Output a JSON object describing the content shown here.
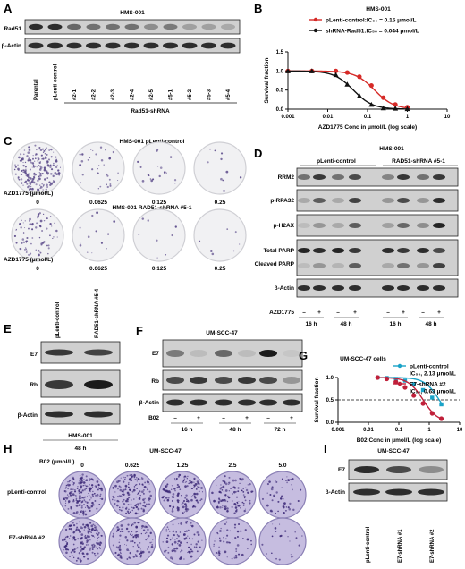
{
  "panels": {
    "A": {
      "letter": "A",
      "title": "HMS-001",
      "rows": [
        "Rad51",
        "β-Actin"
      ],
      "lanes": [
        "Parental",
        "pLenti-control",
        "#2-1",
        "#2-2",
        "#2-3",
        "#2-4",
        "#2-5",
        "#5-1",
        "#5-2",
        "#5-3",
        "#5-4"
      ],
      "group_label": "Rad51-shRNA",
      "rad51_intensity": [
        0.85,
        0.85,
        0.55,
        0.5,
        0.5,
        0.5,
        0.35,
        0.45,
        0.25,
        0.25,
        0.2
      ]
    },
    "B": {
      "letter": "B"
    },
    "C": {
      "letter": "C",
      "title1": "HMS-001 pLenti-control",
      "title2": "HMS-001 RAD51-shRNA #5-1",
      "row_label": "AZD1775 (μmol/L)",
      "doses": [
        "0",
        "0.0625",
        "0.125",
        "0.25"
      ],
      "density_top": [
        0.9,
        0.15,
        0.08,
        0.05
      ],
      "density_bottom": [
        0.35,
        0.06,
        0.04,
        0.03
      ]
    },
    "D": {
      "letter": "D",
      "title": "HMS-001",
      "groups": [
        "pLenti-control",
        "RAD51-shRNA #5-1"
      ],
      "rows": [
        "RRM2",
        "p-RPA32",
        "p-H2AX",
        "Total PARP",
        "Cleaved PARP",
        "β-Actin"
      ],
      "treatment_label": "AZD1775",
      "signs": [
        "–",
        "+",
        "–",
        "+",
        "–",
        "+",
        "–",
        "+"
      ],
      "times": [
        "16 h",
        "48 h",
        "16 h",
        "48 h"
      ]
    },
    "E": {
      "letter": "E",
      "lanes": [
        "pLenti-control",
        "RAD51-shRNA #5-4"
      ],
      "rows": [
        "E7",
        "Rb",
        "β-Actin"
      ],
      "cell_line": "HMS-001",
      "time": "48 h"
    },
    "F": {
      "letter": "F",
      "title": "UM-SCC-47",
      "rows": [
        "E7",
        "Rb",
        "β-Actin"
      ],
      "treatment_label": "B02",
      "signs": [
        "–",
        "+",
        "–",
        "+",
        "–",
        "+"
      ],
      "times": [
        "16 h",
        "48 h",
        "72 h"
      ]
    },
    "G": {
      "letter": "G"
    },
    "H": {
      "letter": "H",
      "title": "UM-SCC-47",
      "dose_label": "B02 (μmol/L)",
      "doses": [
        "0",
        "0.625",
        "1.25",
        "2.5",
        "5.0"
      ],
      "row_labels": [
        "pLenti-control",
        "E7-shRNA #2"
      ],
      "density_top": [
        0.85,
        0.7,
        0.6,
        0.45,
        0.2
      ],
      "density_bottom": [
        0.75,
        0.5,
        0.4,
        0.25,
        0.1
      ]
    },
    "I": {
      "letter": "I",
      "title": "UM-SCC-47",
      "rows": [
        "E7",
        "β-Actin"
      ],
      "lanes": [
        "pLenti-control",
        "E7-shRNA #1",
        "E7-shRNA #2"
      ]
    }
  },
  "chart_data": [
    {
      "type": "line",
      "panel": "B",
      "title": "HMS-001",
      "xlabel": "AZD1775 Conc in μmol/L (log scale)",
      "ylabel": "Survival fraction",
      "xscale": "log",
      "xlim": [
        0.001,
        10
      ],
      "ylim": [
        0,
        1.5
      ],
      "xticks": [
        "0.001",
        "0.01",
        "0.1",
        "1",
        "10"
      ],
      "yticks": [
        "0.0",
        "0.5",
        "1.0",
        "1.5"
      ],
      "legend_position": "top",
      "series": [
        {
          "name": "pLenti-control:IC₅₀ = 0.15 μmol/L",
          "color": "#d62a27",
          "marker": "circle",
          "ic50": 0.15,
          "hill": 1.8,
          "x": [
            0.001,
            0.004,
            0.016,
            0.031,
            0.0625,
            0.125,
            0.25,
            0.5,
            1
          ],
          "y": [
            1.0,
            1.0,
            1.0,
            0.96,
            0.85,
            0.62,
            0.3,
            0.12,
            0.05
          ]
        },
        {
          "name": "shRNA-Rad51:IC₅₀ = 0.044 μmol/L",
          "color": "#111111",
          "marker": "triangle",
          "ic50": 0.044,
          "hill": 1.8,
          "x": [
            0.001,
            0.004,
            0.016,
            0.031,
            0.0625,
            0.125,
            0.25,
            0.5,
            1
          ],
          "y": [
            1.0,
            1.0,
            0.9,
            0.65,
            0.35,
            0.12,
            0.03,
            0.02,
            0.01
          ]
        }
      ]
    },
    {
      "type": "line",
      "panel": "G",
      "title": "UM-SCC-47 cells",
      "xlabel": "B02 Conc in μmol/L (log scale)",
      "ylabel": "Survival fraction",
      "xscale": "log",
      "xlim": [
        0.001,
        10
      ],
      "ylim": [
        0,
        1.0
      ],
      "xticks": [
        "0.001",
        "0.01",
        "0.1",
        "1",
        "10"
      ],
      "yticks": [
        "0.0",
        "0.5",
        "1.0"
      ],
      "reference_line": 0.5,
      "legend_position": "top-right",
      "series": [
        {
          "name": "pLenti-control",
          "ic50_label": "IC₅₀, 2.13 μmol/L",
          "color": "#1aa3c8",
          "marker": "square",
          "ic50": 2.13,
          "hill": 1.8,
          "x": [
            0.02,
            0.04,
            0.08,
            0.16,
            0.31,
            0.625,
            1.25,
            2.5
          ],
          "y": [
            1.0,
            0.99,
            0.97,
            0.93,
            0.85,
            0.72,
            0.55,
            0.4
          ]
        },
        {
          "name": "E7-shRNA #2",
          "ic50_label": "IC₅₀, 0.63 μmol/L",
          "color": "#c0203a",
          "marker": "circle",
          "ic50": 0.63,
          "hill": 1.8,
          "x": [
            0.02,
            0.04,
            0.08,
            0.16,
            0.31,
            0.625,
            1.25,
            2.5
          ],
          "y": [
            1.0,
            0.97,
            0.9,
            0.78,
            0.6,
            0.42,
            0.2,
            0.08
          ]
        }
      ]
    }
  ]
}
